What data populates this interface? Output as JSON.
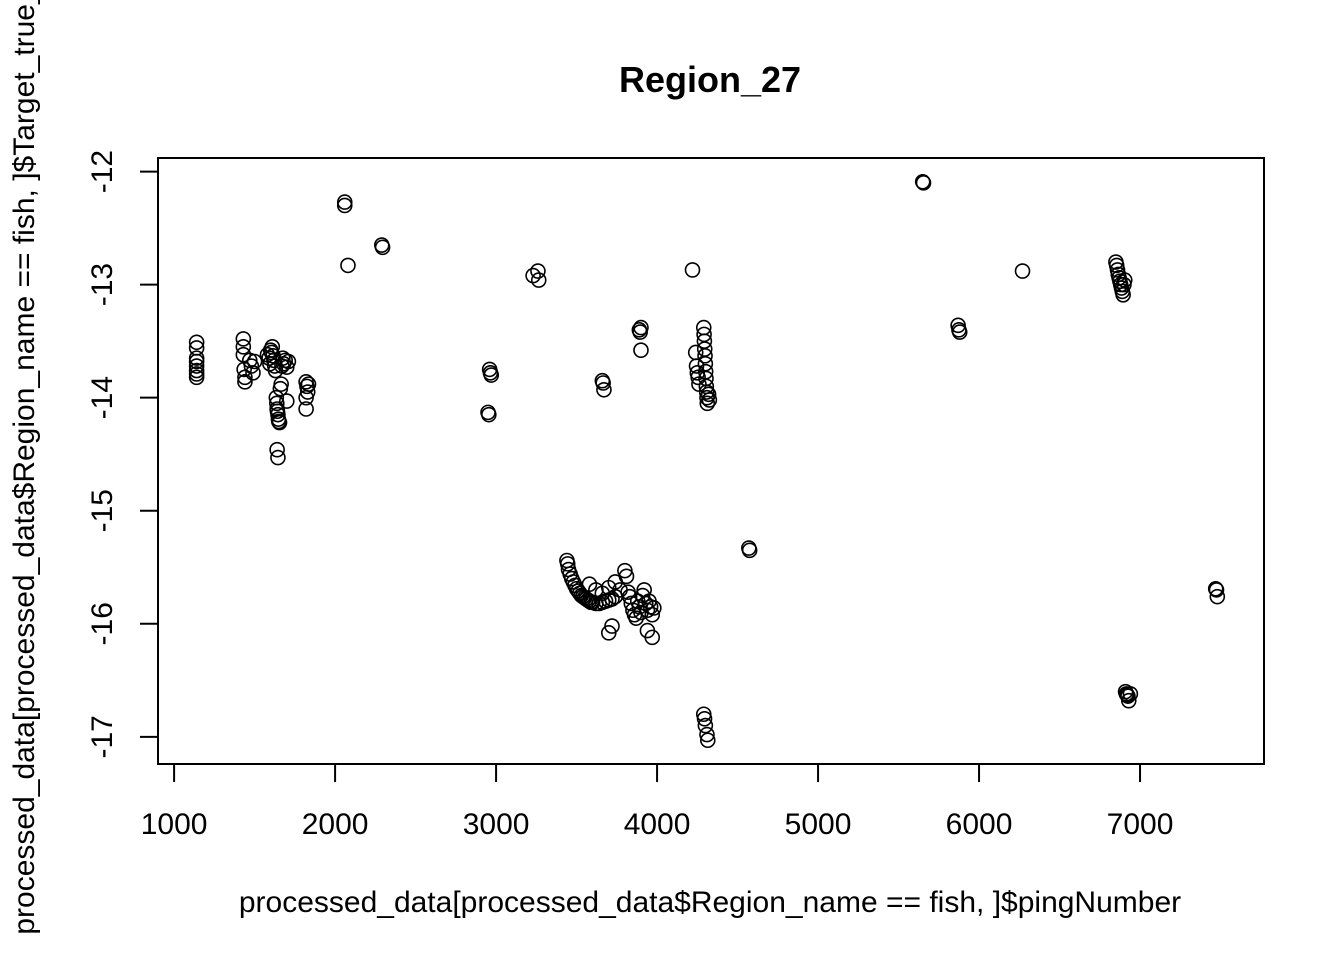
{
  "chart_data": {
    "type": "scatter",
    "title": "Region_27",
    "xlabel": "processed_data[processed_data$Region_name == fish, ]$pingNumber",
    "ylabel": "processed_data[processed_data$Region_name == fish, ]$Target_true_",
    "xlim": [
      900,
      7770
    ],
    "ylim": [
      -17.24,
      -11.88
    ],
    "xticks": [
      1000,
      2000,
      3000,
      4000,
      5000,
      6000,
      7000
    ],
    "yticks": [
      -12,
      -13,
      -14,
      -15,
      -16,
      -17
    ],
    "grid": false,
    "legend": "none",
    "marker": "open-circle",
    "points": [
      {
        "x": 1140,
        "y": -13.51
      },
      {
        "x": 1140,
        "y": -13.56
      },
      {
        "x": 1140,
        "y": -13.65
      },
      {
        "x": 1140,
        "y": -13.68
      },
      {
        "x": 1140,
        "y": -13.72
      },
      {
        "x": 1140,
        "y": -13.76
      },
      {
        "x": 1140,
        "y": -13.79
      },
      {
        "x": 1140,
        "y": -13.82
      },
      {
        "x": 1430,
        "y": -13.48
      },
      {
        "x": 1430,
        "y": -13.55
      },
      {
        "x": 1430,
        "y": -13.62
      },
      {
        "x": 1435,
        "y": -13.75
      },
      {
        "x": 1440,
        "y": -13.82
      },
      {
        "x": 1440,
        "y": -13.86
      },
      {
        "x": 1470,
        "y": -13.67
      },
      {
        "x": 1480,
        "y": -13.72
      },
      {
        "x": 1490,
        "y": -13.78
      },
      {
        "x": 1500,
        "y": -13.68
      },
      {
        "x": 1580,
        "y": -13.62
      },
      {
        "x": 1590,
        "y": -13.65
      },
      {
        "x": 1595,
        "y": -13.7
      },
      {
        "x": 1600,
        "y": -13.58
      },
      {
        "x": 1605,
        "y": -13.6
      },
      {
        "x": 1610,
        "y": -13.55
      },
      {
        "x": 1615,
        "y": -13.63
      },
      {
        "x": 1620,
        "y": -13.67
      },
      {
        "x": 1625,
        "y": -13.72
      },
      {
        "x": 1630,
        "y": -13.76
      },
      {
        "x": 1635,
        "y": -14.0
      },
      {
        "x": 1638,
        "y": -14.05
      },
      {
        "x": 1640,
        "y": -14.1
      },
      {
        "x": 1642,
        "y": -14.12
      },
      {
        "x": 1645,
        "y": -14.15
      },
      {
        "x": 1648,
        "y": -14.19
      },
      {
        "x": 1650,
        "y": -14.21
      },
      {
        "x": 1655,
        "y": -14.22
      },
      {
        "x": 1660,
        "y": -13.92
      },
      {
        "x": 1665,
        "y": -13.88
      },
      {
        "x": 1670,
        "y": -13.72
      },
      {
        "x": 1675,
        "y": -13.65
      },
      {
        "x": 1680,
        "y": -13.7
      },
      {
        "x": 1690,
        "y": -13.67
      },
      {
        "x": 1700,
        "y": -13.73
      },
      {
        "x": 1710,
        "y": -13.68
      },
      {
        "x": 1700,
        "y": -14.03
      },
      {
        "x": 1640,
        "y": -14.46
      },
      {
        "x": 1645,
        "y": -14.53
      },
      {
        "x": 1820,
        "y": -13.86
      },
      {
        "x": 1825,
        "y": -13.9
      },
      {
        "x": 1830,
        "y": -13.95
      },
      {
        "x": 1835,
        "y": -13.88
      },
      {
        "x": 1820,
        "y": -14.0
      },
      {
        "x": 1820,
        "y": -14.1
      },
      {
        "x": 2060,
        "y": -12.27
      },
      {
        "x": 2060,
        "y": -12.3
      },
      {
        "x": 2080,
        "y": -12.83
      },
      {
        "x": 2290,
        "y": -12.65
      },
      {
        "x": 2295,
        "y": -12.67
      },
      {
        "x": 2950,
        "y": -14.13
      },
      {
        "x": 2955,
        "y": -14.15
      },
      {
        "x": 2960,
        "y": -13.75
      },
      {
        "x": 2965,
        "y": -13.78
      },
      {
        "x": 2970,
        "y": -13.8
      },
      {
        "x": 3230,
        "y": -12.92
      },
      {
        "x": 3260,
        "y": -12.88
      },
      {
        "x": 3265,
        "y": -12.96
      },
      {
        "x": 3440,
        "y": -15.44
      },
      {
        "x": 3445,
        "y": -15.47
      },
      {
        "x": 3450,
        "y": -15.52
      },
      {
        "x": 3460,
        "y": -15.56
      },
      {
        "x": 3470,
        "y": -15.6
      },
      {
        "x": 3480,
        "y": -15.63
      },
      {
        "x": 3490,
        "y": -15.66
      },
      {
        "x": 3500,
        "y": -15.69
      },
      {
        "x": 3510,
        "y": -15.71
      },
      {
        "x": 3520,
        "y": -15.73
      },
      {
        "x": 3530,
        "y": -15.75
      },
      {
        "x": 3540,
        "y": -15.76
      },
      {
        "x": 3550,
        "y": -15.77
      },
      {
        "x": 3560,
        "y": -15.78
      },
      {
        "x": 3570,
        "y": -15.79
      },
      {
        "x": 3580,
        "y": -15.8
      },
      {
        "x": 3590,
        "y": -15.81
      },
      {
        "x": 3600,
        "y": -15.81
      },
      {
        "x": 3620,
        "y": -15.82
      },
      {
        "x": 3640,
        "y": -15.82
      },
      {
        "x": 3660,
        "y": -15.81
      },
      {
        "x": 3680,
        "y": -15.8
      },
      {
        "x": 3700,
        "y": -15.79
      },
      {
        "x": 3720,
        "y": -15.78
      },
      {
        "x": 3740,
        "y": -15.76
      },
      {
        "x": 3580,
        "y": -15.65
      },
      {
        "x": 3620,
        "y": -15.7
      },
      {
        "x": 3660,
        "y": -15.73
      },
      {
        "x": 3700,
        "y": -15.68
      },
      {
        "x": 3740,
        "y": -15.63
      },
      {
        "x": 3770,
        "y": -15.7
      },
      {
        "x": 3700,
        "y": -16.08
      },
      {
        "x": 3720,
        "y": -16.02
      },
      {
        "x": 3800,
        "y": -15.53
      },
      {
        "x": 3810,
        "y": -15.58
      },
      {
        "x": 3820,
        "y": -15.72
      },
      {
        "x": 3830,
        "y": -15.76
      },
      {
        "x": 3840,
        "y": -15.82
      },
      {
        "x": 3850,
        "y": -15.88
      },
      {
        "x": 3860,
        "y": -15.92
      },
      {
        "x": 3870,
        "y": -15.95
      },
      {
        "x": 3880,
        "y": -15.8
      },
      {
        "x": 3890,
        "y": -15.85
      },
      {
        "x": 3900,
        "y": -15.9
      },
      {
        "x": 3910,
        "y": -15.75
      },
      {
        "x": 3920,
        "y": -15.7
      },
      {
        "x": 3930,
        "y": -15.82
      },
      {
        "x": 3940,
        "y": -15.88
      },
      {
        "x": 3950,
        "y": -15.8
      },
      {
        "x": 3960,
        "y": -15.85
      },
      {
        "x": 3970,
        "y": -15.92
      },
      {
        "x": 3980,
        "y": -15.86
      },
      {
        "x": 3940,
        "y": -16.06
      },
      {
        "x": 3970,
        "y": -16.12
      },
      {
        "x": 3890,
        "y": -13.4
      },
      {
        "x": 3895,
        "y": -13.42
      },
      {
        "x": 3900,
        "y": -13.38
      },
      {
        "x": 3900,
        "y": -13.58
      },
      {
        "x": 3660,
        "y": -13.85
      },
      {
        "x": 3665,
        "y": -13.87
      },
      {
        "x": 3670,
        "y": -13.93
      },
      {
        "x": 4220,
        "y": -12.87
      },
      {
        "x": 4240,
        "y": -13.6
      },
      {
        "x": 4245,
        "y": -13.72
      },
      {
        "x": 4250,
        "y": -13.78
      },
      {
        "x": 4255,
        "y": -13.82
      },
      {
        "x": 4260,
        "y": -13.88
      },
      {
        "x": 4290,
        "y": -13.38
      },
      {
        "x": 4292,
        "y": -13.44
      },
      {
        "x": 4294,
        "y": -13.5
      },
      {
        "x": 4296,
        "y": -13.57
      },
      {
        "x": 4298,
        "y": -13.63
      },
      {
        "x": 4300,
        "y": -13.7
      },
      {
        "x": 4302,
        "y": -13.77
      },
      {
        "x": 4304,
        "y": -13.83
      },
      {
        "x": 4306,
        "y": -13.9
      },
      {
        "x": 4308,
        "y": -13.95
      },
      {
        "x": 4310,
        "y": -14.0
      },
      {
        "x": 4312,
        "y": -14.05
      },
      {
        "x": 4320,
        "y": -13.97
      },
      {
        "x": 4325,
        "y": -14.02
      },
      {
        "x": 4290,
        "y": -16.8
      },
      {
        "x": 4295,
        "y": -16.84
      },
      {
        "x": 4300,
        "y": -16.9
      },
      {
        "x": 4310,
        "y": -16.98
      },
      {
        "x": 4315,
        "y": -17.03
      },
      {
        "x": 4570,
        "y": -15.33
      },
      {
        "x": 4575,
        "y": -15.35
      },
      {
        "x": 5650,
        "y": -12.09
      },
      {
        "x": 5655,
        "y": -12.1
      },
      {
        "x": 5870,
        "y": -13.36
      },
      {
        "x": 5875,
        "y": -13.4
      },
      {
        "x": 5880,
        "y": -13.42
      },
      {
        "x": 6270,
        "y": -12.88
      },
      {
        "x": 6850,
        "y": -12.8
      },
      {
        "x": 6855,
        "y": -12.83
      },
      {
        "x": 6860,
        "y": -12.87
      },
      {
        "x": 6865,
        "y": -12.91
      },
      {
        "x": 6870,
        "y": -12.94
      },
      {
        "x": 6875,
        "y": -12.97
      },
      {
        "x": 6880,
        "y": -13.0
      },
      {
        "x": 6885,
        "y": -13.03
      },
      {
        "x": 6890,
        "y": -13.06
      },
      {
        "x": 6895,
        "y": -13.09
      },
      {
        "x": 6900,
        "y": -13.0
      },
      {
        "x": 6905,
        "y": -12.96
      },
      {
        "x": 6910,
        "y": -16.6
      },
      {
        "x": 6915,
        "y": -16.62
      },
      {
        "x": 6920,
        "y": -16.63
      },
      {
        "x": 6925,
        "y": -16.64
      },
      {
        "x": 6930,
        "y": -16.68
      },
      {
        "x": 6940,
        "y": -16.62
      },
      {
        "x": 7470,
        "y": -15.69
      },
      {
        "x": 7475,
        "y": -15.7
      },
      {
        "x": 7480,
        "y": -15.76
      }
    ]
  }
}
